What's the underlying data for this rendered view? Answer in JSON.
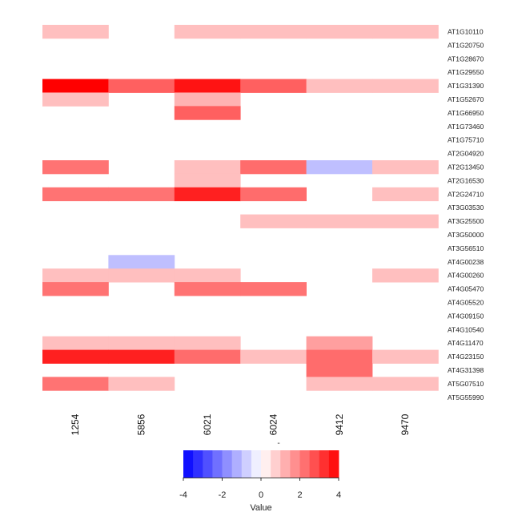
{
  "chart_data": {
    "type": "heatmap",
    "title": "",
    "xlabel": "",
    "ylabel": "",
    "x_categories": [
      "1254",
      "5856",
      "6021",
      "6024",
      "9412",
      "9470"
    ],
    "y_categories": [
      "AT1G10110",
      "AT1G20750",
      "AT1G28670",
      "AT1G29550",
      "AT1G31390",
      "AT1G52670",
      "AT1G66950",
      "AT1G73460",
      "AT1G75710",
      "AT2G04920",
      "AT2G13450",
      "AT2G16530",
      "AT2G24710",
      "AT3G03530",
      "AT3G25500",
      "AT3G50000",
      "AT3G56510",
      "AT4G00238",
      "AT4G00260",
      "AT4G05470",
      "AT4G05520",
      "AT4G09150",
      "AT4G10540",
      "AT4G11470",
      "AT4G23150",
      "AT4G31398",
      "AT5G07510",
      "AT5G55990"
    ],
    "values": [
      [
        1,
        0,
        1,
        1,
        1,
        1
      ],
      [
        0,
        0,
        0,
        0,
        0,
        0
      ],
      [
        0,
        0,
        0,
        0,
        0,
        0
      ],
      [
        0,
        0,
        0,
        0,
        0,
        0
      ],
      [
        4,
        2.5,
        3.7,
        2.5,
        1,
        1
      ],
      [
        1,
        0,
        1.2,
        0,
        0,
        0
      ],
      [
        0,
        0,
        2.5,
        0,
        0,
        0
      ],
      [
        0,
        0,
        0,
        0,
        0,
        0
      ],
      [
        0,
        0,
        0,
        0,
        0,
        0
      ],
      [
        0,
        0,
        0,
        0,
        0,
        0
      ],
      [
        2.2,
        0,
        1,
        2.3,
        -1,
        1
      ],
      [
        0,
        0,
        1,
        0,
        0,
        0
      ],
      [
        2.2,
        2.2,
        3.5,
        2.3,
        0,
        1
      ],
      [
        0,
        0,
        0,
        0,
        0,
        0
      ],
      [
        0,
        0,
        0,
        1,
        1,
        1
      ],
      [
        0,
        0,
        0,
        0,
        0,
        0
      ],
      [
        0,
        0,
        0,
        0,
        0,
        0
      ],
      [
        0,
        -1,
        0,
        0,
        0,
        0
      ],
      [
        1,
        1,
        1,
        0,
        0,
        1
      ],
      [
        2.2,
        0,
        2.2,
        2.2,
        0,
        0
      ],
      [
        0,
        0,
        0,
        0,
        0,
        0
      ],
      [
        0,
        0,
        0,
        0,
        0,
        0
      ],
      [
        0,
        0,
        0,
        0,
        0,
        0
      ],
      [
        1,
        1,
        1,
        0,
        1.5,
        0
      ],
      [
        3.5,
        3.5,
        2.3,
        1,
        2.3,
        1
      ],
      [
        0,
        0,
        0,
        0,
        2.3,
        0
      ],
      [
        2.2,
        1,
        0,
        0,
        1,
        1
      ],
      [
        0,
        0,
        0,
        0,
        0,
        0
      ]
    ],
    "color_scale": {
      "min": -4,
      "max": 4,
      "low_color": "#0000ff",
      "mid_color": "#ffffff",
      "high_color": "#ff0000"
    },
    "legend": {
      "title": "Value",
      "ticks": [
        "-4",
        "-2",
        "0",
        "2",
        "4"
      ],
      "dash": "-"
    },
    "grid": false
  }
}
